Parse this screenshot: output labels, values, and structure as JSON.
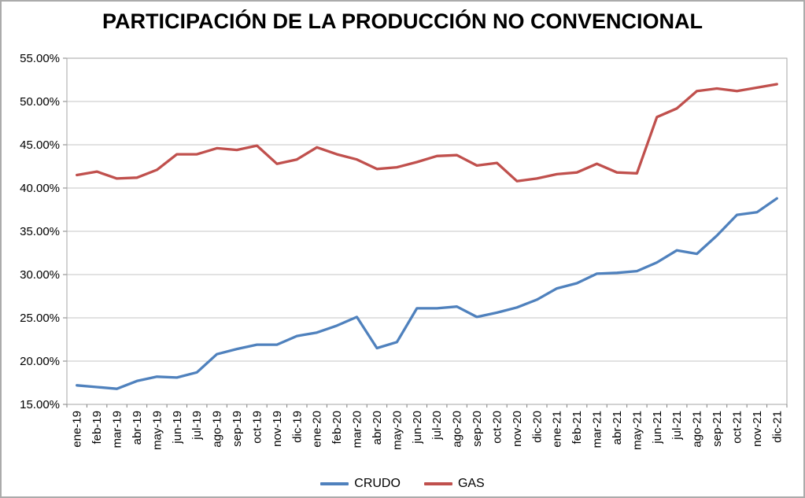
{
  "chart_data": {
    "type": "line",
    "title": "PARTICIPACIÓN DE LA PRODUCCIÓN NO CONVENCIONAL",
    "categories": [
      "ene-19",
      "feb-19",
      "mar-19",
      "abr-19",
      "may-19",
      "jun-19",
      "jul-19",
      "ago-19",
      "sep-19",
      "oct-19",
      "nov-19",
      "dic-19",
      "ene-20",
      "feb-20",
      "mar-20",
      "abr-20",
      "may-20",
      "jun-20",
      "jul-20",
      "ago-20",
      "sep-20",
      "oct-20",
      "nov-20",
      "dic-20",
      "ene-21",
      "feb-21",
      "mar-21",
      "abr-21",
      "may-21",
      "jun-21",
      "jul-21",
      "ago-21",
      "sep-21",
      "oct-21",
      "nov-21",
      "dic-21"
    ],
    "series": [
      {
        "name": "CRUDO",
        "color": "#4F81BD",
        "values": [
          17.2,
          17.0,
          16.8,
          17.7,
          18.2,
          18.1,
          18.7,
          20.8,
          21.4,
          21.9,
          21.9,
          22.9,
          23.3,
          24.1,
          25.1,
          21.5,
          22.2,
          26.1,
          26.1,
          26.3,
          25.1,
          25.6,
          26.2,
          27.1,
          28.4,
          29.0,
          30.1,
          30.2,
          30.4,
          31.4,
          32.8,
          32.4,
          34.5,
          36.9,
          37.2,
          38.8
        ]
      },
      {
        "name": "GAS",
        "color": "#C0504D",
        "values": [
          41.5,
          41.9,
          41.1,
          41.2,
          42.1,
          43.9,
          43.9,
          44.6,
          44.4,
          44.9,
          42.8,
          43.3,
          44.7,
          43.9,
          43.3,
          42.2,
          42.4,
          43.0,
          43.7,
          43.8,
          42.6,
          42.9,
          40.8,
          41.1,
          41.6,
          41.8,
          42.8,
          41.8,
          41.7,
          48.2,
          49.2,
          51.2,
          51.5,
          51.2,
          51.6,
          52.0
        ]
      }
    ],
    "ylim": [
      15,
      55
    ],
    "y_ticks": [
      "55.00%",
      "50.00%",
      "45.00%",
      "40.00%",
      "35.00%",
      "30.00%",
      "25.00%",
      "20.00%",
      "15.00%"
    ],
    "xlabel": "",
    "ylabel": "",
    "grid": true,
    "legend_position": "bottom",
    "colors": {
      "gridline": "#c6c6c6",
      "plot_border": "#a6a6a6",
      "axis": "#808080",
      "tick_label": "#000000",
      "title": "#000000"
    }
  }
}
